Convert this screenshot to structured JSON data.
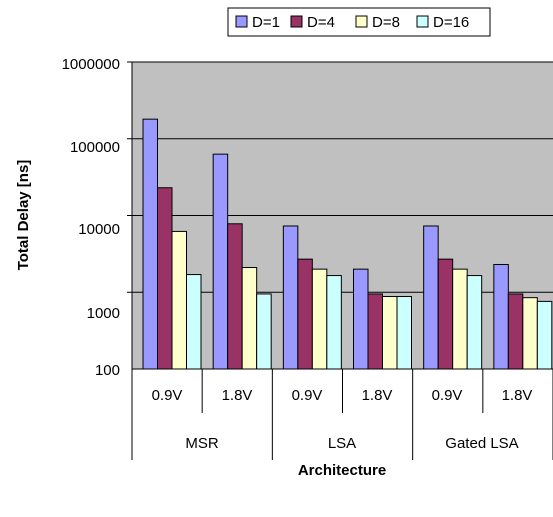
{
  "chart_data": {
    "type": "bar",
    "y_scale": "log",
    "ylim": [
      100,
      1000000
    ],
    "yticks": [
      "100",
      "1000",
      "10000",
      "100000",
      "1000000"
    ],
    "ylabel": "Total Delay [ns]",
    "xlabel": "Architecture",
    "grid": true,
    "legend_position": "top",
    "groups": [
      {
        "name": "MSR",
        "categories": [
          "0.9V",
          "1.8V"
        ]
      },
      {
        "name": "LSA",
        "categories": [
          "0.9V",
          "1.8V"
        ]
      },
      {
        "name": "Gated LSA",
        "categories": [
          "0.9V",
          "1.8V"
        ]
      }
    ],
    "series": [
      {
        "name": "D=1",
        "color": "#9999ff",
        "values": [
          180000,
          63000,
          7300,
          2000,
          7300,
          2300
        ]
      },
      {
        "name": "D=4",
        "color": "#993366",
        "values": [
          23000,
          7800,
          2700,
          950,
          2700,
          950
        ]
      },
      {
        "name": "D=8",
        "color": "#ffffcc",
        "values": [
          6200,
          2100,
          2000,
          880,
          2000,
          850
        ]
      },
      {
        "name": "D=16",
        "color": "#ccffff",
        "values": [
          1700,
          950,
          1650,
          880,
          1650,
          760
        ]
      }
    ]
  },
  "colors": {
    "plot_background": "#c0c0c0",
    "bar_stroke": "#000000"
  }
}
